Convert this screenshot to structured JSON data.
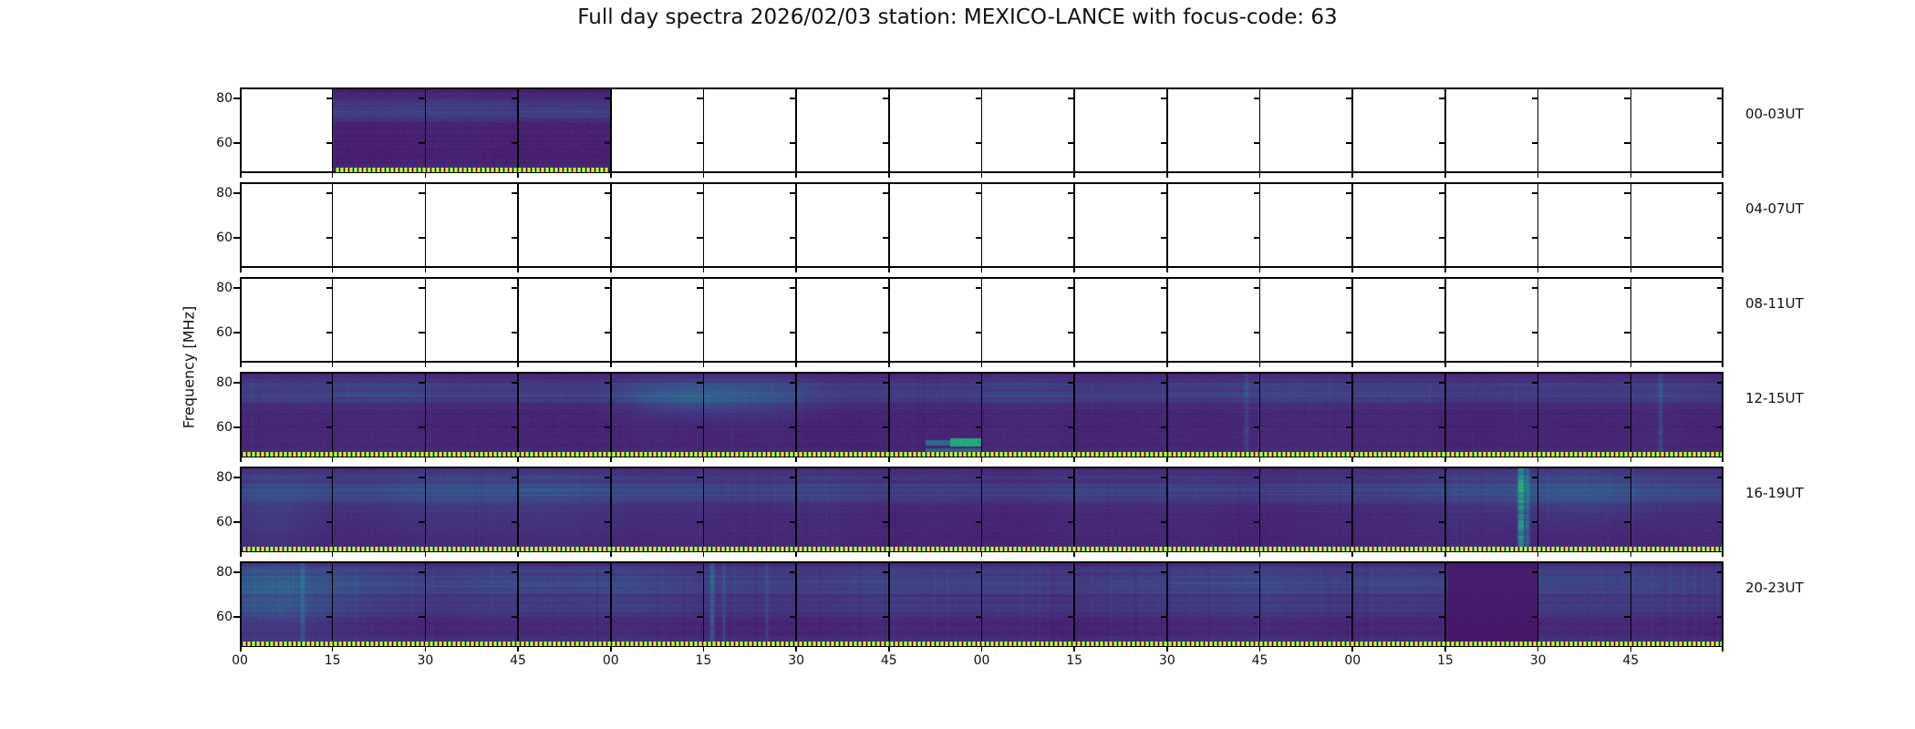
{
  "chart_data": {
    "type": "heatmap",
    "subtype": "radio-spectrogram-grid",
    "title": "Full day spectra 2026/02/03 station: MEXICO-LANCE with focus-code: 63",
    "date": "2026/02/03",
    "station": "MEXICO-LANCE",
    "focus_code": "63",
    "ylabel": "Frequency [MHz]",
    "colormap": "viridis",
    "y_tick_labels": [
      "80",
      "60"
    ],
    "y_ticks_mhz": [
      80,
      60
    ],
    "freq_range_mhz": [
      46,
      84
    ],
    "segments_per_row": 16,
    "minutes_per_segment": 15,
    "hours_per_row": 4,
    "x_tick_labels": [
      "00",
      "15",
      "30",
      "45",
      "00",
      "15",
      "30",
      "45",
      "00",
      "15",
      "30",
      "45",
      "00",
      "15",
      "30",
      "45"
    ],
    "x_axis_unit": "minutes of hour",
    "rows": [
      {
        "label": "00-03UT",
        "has_data": true,
        "data_start_seg": 1,
        "data_end_seg": 4,
        "coverage": "data only 00:15-01:00, remainder empty",
        "render": {
          "seed": 11,
          "base": 0.085,
          "hj": 0.016,
          "streaks": 0.5,
          "streakAmp": 0.05,
          "bands": [
            {
              "c": 0.22,
              "w": 0.07,
              "a": 0.09
            },
            {
              "c": 0.33,
              "w": 0.05,
              "a": 0.06
            },
            {
              "c": 0.97,
              "w": 0.04,
              "a": 0.05
            }
          ],
          "features": []
        }
      },
      {
        "label": "04-07UT",
        "has_data": false,
        "data_start_seg": 0,
        "data_end_seg": 0,
        "coverage": "no data",
        "render": null
      },
      {
        "label": "08-11UT",
        "has_data": false,
        "data_start_seg": 0,
        "data_end_seg": 0,
        "coverage": "no data",
        "render": null
      },
      {
        "label": "12-15UT",
        "has_data": true,
        "data_start_seg": 0,
        "data_end_seg": 16,
        "coverage": "full 12:00-16:00",
        "features_note": "bright teal emission bar near 13:50 at low frequency; faint vertical streaks",
        "render": {
          "seed": 44,
          "base": 0.095,
          "hj": 0.018,
          "streaks": 0.8,
          "streakAmp": 0.07,
          "bands": [
            {
              "c": 0.26,
              "w": 0.08,
              "a": 0.09
            },
            {
              "c": 0.12,
              "w": 0.05,
              "a": 0.04
            },
            {
              "c": 0.97,
              "w": 0.04,
              "a": 0.05
            }
          ],
          "features": [
            {
              "t": "smudge",
              "x": 0.335,
              "y": 0.3,
              "rx": 0.04,
              "ry": 0.15,
              "a": 0.1
            },
            {
              "t": "smudge",
              "x": 0.295,
              "y": 0.3,
              "rx": 0.025,
              "ry": 0.12,
              "a": 0.07
            },
            {
              "t": "hbar",
              "x0": 0.4785,
              "x1": 0.4995,
              "y0": 0.775,
              "y1": 0.865,
              "v": 0.6
            },
            {
              "t": "hbar",
              "x0": 0.462,
              "x1": 0.4785,
              "y0": 0.79,
              "y1": 0.855,
              "v": 0.35
            },
            {
              "t": "hbar",
              "x0": 0.462,
              "x1": 0.5,
              "y0": 0.89,
              "y1": 0.945,
              "v": 0.3
            },
            {
              "t": "vline",
              "x": 0.678,
              "w": 2,
              "a": 0.09
            },
            {
              "t": "vline",
              "x": 0.957,
              "w": 2,
              "a": 0.11
            }
          ]
        }
      },
      {
        "label": "16-19UT",
        "has_data": true,
        "data_start_seg": 0,
        "data_end_seg": 16,
        "coverage": "full 16:00-20:00",
        "features_note": "strong narrow vertical burst near 19:27 spanning all frequencies",
        "render": {
          "seed": 55,
          "base": 0.1,
          "hj": 0.02,
          "streaks": 0.9,
          "streakAmp": 0.08,
          "bands": [
            {
              "c": 0.3,
              "w": 0.09,
              "a": 0.1
            },
            {
              "c": 0.12,
              "w": 0.05,
              "a": 0.05
            },
            {
              "c": 0.97,
              "w": 0.04,
              "a": 0.05
            }
          ],
          "features": [
            {
              "t": "vline",
              "x": 0.8635,
              "w": 3,
              "a": 0.4
            },
            {
              "t": "vline",
              "x": 0.8675,
              "w": 2,
              "a": 0.22
            },
            {
              "t": "smudge",
              "x": 0.904,
              "y": 0.3,
              "rx": 0.045,
              "ry": 0.22,
              "a": 0.09
            },
            {
              "t": "smudge",
              "x": 0.16,
              "y": 0.35,
              "rx": 0.09,
              "ry": 0.3,
              "a": 0.05
            },
            {
              "t": "smudge",
              "x": 0.02,
              "y": 0.5,
              "rx": 0.02,
              "ry": 0.4,
              "a": 0.06
            }
          ]
        }
      },
      {
        "label": "20-23UT",
        "has_data": true,
        "data_start_seg": 0,
        "data_end_seg": 16,
        "coverage": "full 20:00-24:00",
        "features_note": "noisier with vertical interference streaks; smooth dark patch 23:15-23:30",
        "render": {
          "seed": 66,
          "base": 0.105,
          "hj": 0.022,
          "streaks": 1.6,
          "streakAmp": 0.12,
          "bands": [
            {
              "c": 0.28,
              "w": 0.1,
              "a": 0.1
            },
            {
              "c": 0.55,
              "w": 0.07,
              "a": 0.05
            },
            {
              "c": 0.12,
              "w": 0.06,
              "a": 0.05
            },
            {
              "c": 0.97,
              "w": 0.04,
              "a": 0.06
            }
          ],
          "features": [
            {
              "t": "dark",
              "x0": 0.8135,
              "x1": 0.8745,
              "v": 0.06
            },
            {
              "t": "vline",
              "x": 0.318,
              "w": 2,
              "a": 0.18
            },
            {
              "t": "vline",
              "x": 0.326,
              "w": 1,
              "a": 0.12
            },
            {
              "t": "vline",
              "x": 0.042,
              "w": 2,
              "a": 0.12
            },
            {
              "t": "vline",
              "x": 0.355,
              "w": 1,
              "a": 0.1
            },
            {
              "t": "smudge",
              "x": 0.025,
              "y": 0.4,
              "rx": 0.03,
              "ry": 0.35,
              "a": 0.1
            }
          ]
        }
      }
    ]
  },
  "colors": {
    "background": "#ffffff",
    "frame": "#000000",
    "spectrogram_base_purple": "#47206f",
    "accent_teal": "#22a884",
    "marker_yellow": "#e8e52e",
    "marker_green": "#6bbf45",
    "marker_gap": "#2d0a50"
  }
}
